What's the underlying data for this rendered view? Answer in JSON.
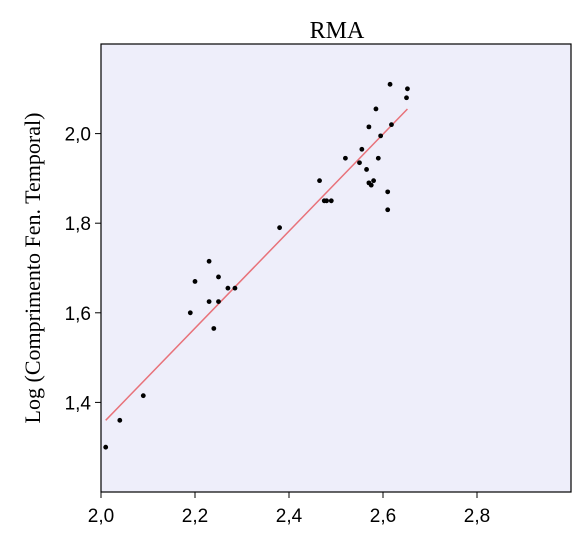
{
  "chart_data": {
    "type": "scatter",
    "title": "RMA",
    "xlabel": "",
    "ylabel": "Log (Comprimento Fen. Temporal)",
    "xlim": [
      2.0,
      3.0
    ],
    "ylim": [
      1.2,
      2.2
    ],
    "x_ticks": [
      "2,0",
      "2,2",
      "2,4",
      "2,6",
      "2,8"
    ],
    "x_tick_values": [
      2.0,
      2.2,
      2.4,
      2.6,
      2.8
    ],
    "y_ticks": [
      "1,4",
      "1,6",
      "1,8",
      "2,0"
    ],
    "y_tick_values": [
      1.4,
      1.6,
      1.8,
      2.0
    ],
    "grid": false,
    "plot_background": "#eeeefa",
    "point_color": "#000000",
    "line_color": "#e8727a",
    "fit_line": {
      "x": [
        2.01,
        2.652
      ],
      "y": [
        1.36,
        2.055
      ]
    },
    "series": [
      {
        "x": [
          2.01,
          2.04,
          2.09,
          2.19,
          2.2,
          2.23,
          2.23,
          2.24,
          2.25,
          2.25,
          2.27,
          2.285,
          2.38,
          2.465,
          2.475,
          2.48,
          2.49,
          2.52,
          2.55,
          2.555,
          2.565,
          2.57,
          2.57,
          2.575,
          2.58,
          2.585,
          2.59,
          2.595,
          2.61,
          2.61,
          2.615,
          2.618,
          2.65,
          2.652
        ],
        "y": [
          1.3,
          1.36,
          1.415,
          1.6,
          1.67,
          1.715,
          1.625,
          1.565,
          1.625,
          1.68,
          1.655,
          1.655,
          1.79,
          1.895,
          1.85,
          1.85,
          1.85,
          1.945,
          1.935,
          1.965,
          1.92,
          2.015,
          1.89,
          1.885,
          1.895,
          2.055,
          1.945,
          1.995,
          1.83,
          1.87,
          2.11,
          2.02,
          2.08,
          2.1
        ]
      }
    ]
  }
}
